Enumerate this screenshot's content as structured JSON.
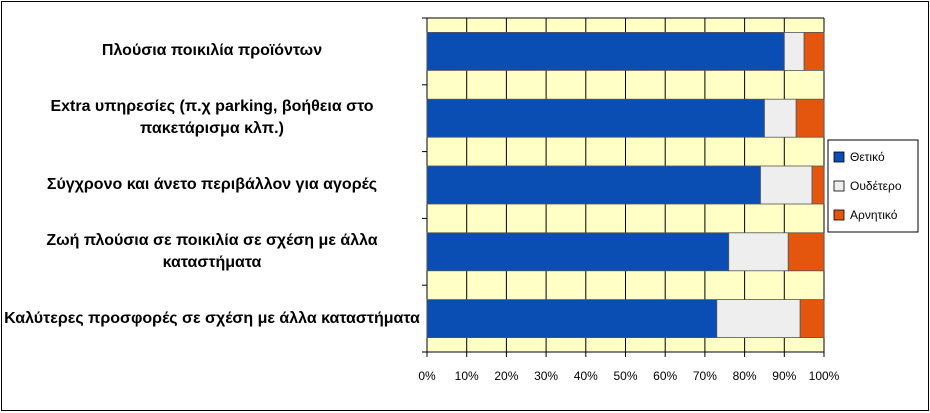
{
  "chart_data": {
    "type": "stacked-barh",
    "categories": [
      "Πλούσια ποικιλία προϊόντων",
      "Extra υπηρεσίες (π.χ parking, βοήθεια στο πακετάρισμα κλπ.)",
      "Σύγχρονο και άνετο περιβάλλον για αγορές",
      "Ζωή πλούσια σε ποικιλία σε σχέση με άλλα καταστήματα",
      "Καλύτερες προσφορές σε σχέση με άλλα καταστήματα"
    ],
    "series": [
      {
        "name": "Θετικό",
        "color": "#0a4db3",
        "values": [
          90,
          85,
          84,
          76,
          73
        ]
      },
      {
        "name": "Ουδέτερο",
        "color": "#eeeeee",
        "values": [
          5,
          8,
          13,
          15,
          21
        ]
      },
      {
        "name": "Αρνητικό",
        "color": "#e4560e",
        "values": [
          5,
          7,
          3,
          9,
          6
        ]
      }
    ],
    "xlim": [
      0,
      100
    ],
    "xticks": [
      {
        "value": 0,
        "label": "0%"
      },
      {
        "value": 10,
        "label": "10%"
      },
      {
        "value": 20,
        "label": "20%"
      },
      {
        "value": 30,
        "label": "30%"
      },
      {
        "value": 40,
        "label": "40%"
      },
      {
        "value": 50,
        "label": "50%"
      },
      {
        "value": 60,
        "label": "60%"
      },
      {
        "value": 70,
        "label": "70%"
      },
      {
        "value": 80,
        "label": "80%"
      },
      {
        "value": 90,
        "label": "90%"
      },
      {
        "value": 100,
        "label": "100%"
      }
    ],
    "grid": true,
    "legend": "right"
  }
}
